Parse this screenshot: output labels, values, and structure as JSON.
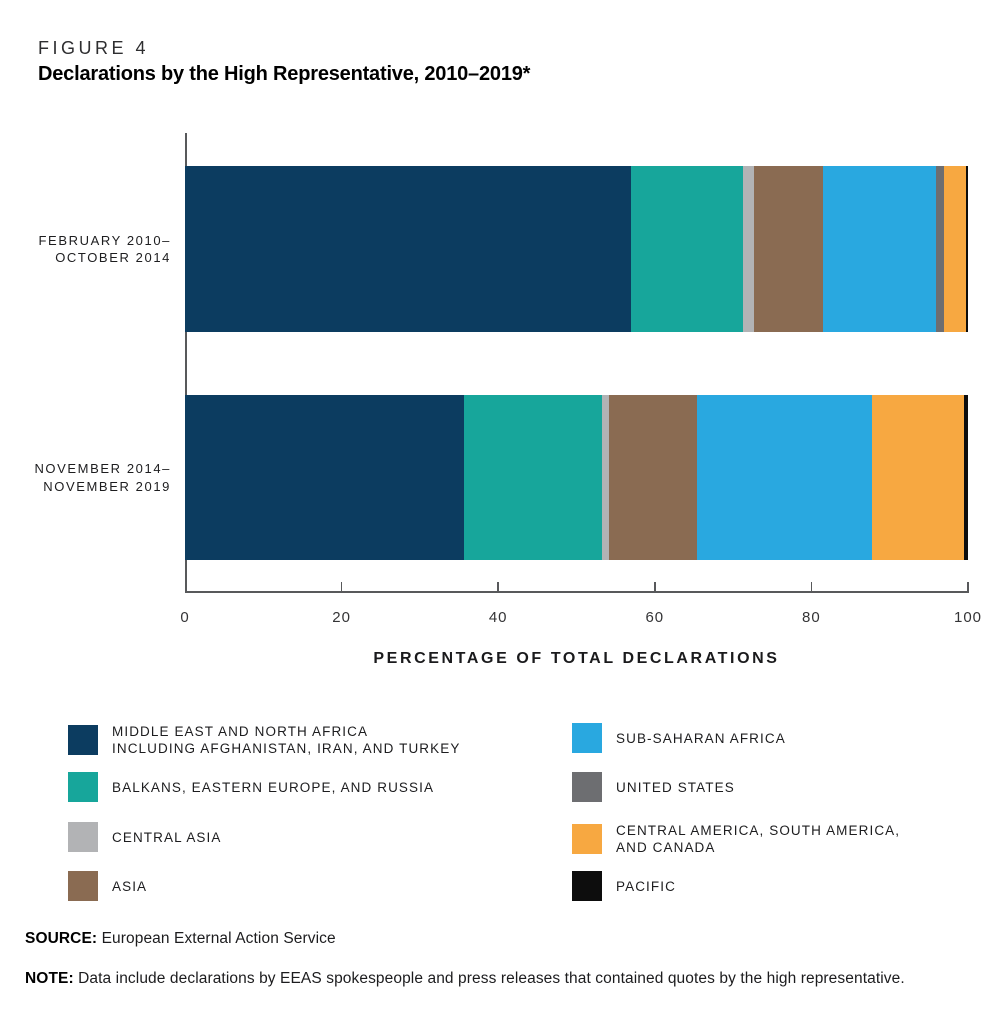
{
  "figure": {
    "label": "FIGURE 4",
    "title": "Declarations by the High Representative, 2010–2019*"
  },
  "chart_data": {
    "type": "bar",
    "orientation": "horizontal",
    "stacked": true,
    "categories": [
      "FEBRUARY 2010–\nOCTOBER 2014",
      "NOVEMBER 2014–\nNOVEMBER 2019"
    ],
    "series": [
      {
        "name": "MIDDLE EAST AND NORTH AFRICA INCLUDING AFGHANISTAN, IRAN, AND TURKEY",
        "color": "#0c3c60",
        "values": [
          56.9,
          35.6
        ]
      },
      {
        "name": "BALKANS, EASTERN EUROPE, AND RUSSIA",
        "color": "#17a69b",
        "values": [
          14.4,
          17.7
        ]
      },
      {
        "name": "CENTRAL ASIA",
        "color": "#b2b3b5",
        "values": [
          1.4,
          0.8
        ]
      },
      {
        "name": "ASIA",
        "color": "#8a6b52",
        "values": [
          8.8,
          11.3
        ]
      },
      {
        "name": "SUB-SAHARAN AFRICA",
        "color": "#29a8e0",
        "values": [
          14.4,
          22.3
        ]
      },
      {
        "name": "UNITED STATES",
        "color": "#6d6e71",
        "values": [
          1.0,
          0
        ]
      },
      {
        "name": "CENTRAL AMERICA, SOUTH AMERICA, AND CANADA",
        "color": "#f7a841",
        "values": [
          2.8,
          11.8
        ]
      },
      {
        "name": "PACIFIC",
        "color": "#0d0d0d",
        "values": [
          0.3,
          0.5
        ]
      }
    ],
    "xlabel": "PERCENTAGE OF TOTAL DECLARATIONS",
    "xticks": [
      0,
      20,
      40,
      60,
      80,
      100
    ],
    "xlim": [
      0,
      100
    ],
    "grid": false,
    "legend_position": "bottom-two-columns"
  },
  "legend": {
    "items": [
      {
        "label": "MIDDLE EAST AND NORTH AFRICA\nINCLUDING AFGHANISTAN, IRAN, AND TURKEY",
        "color": "#0c3c60"
      },
      {
        "label": "BALKANS, EASTERN EUROPE, AND RUSSIA",
        "color": "#17a69b"
      },
      {
        "label": "CENTRAL ASIA",
        "color": "#b2b3b5"
      },
      {
        "label": "ASIA",
        "color": "#8a6b52"
      },
      {
        "label": "SUB-SAHARAN AFRICA",
        "color": "#29a8e0"
      },
      {
        "label": "UNITED STATES",
        "color": "#6d6e71"
      },
      {
        "label": "CENTRAL AMERICA, SOUTH AMERICA,\nAND CANADA",
        "color": "#f7a841"
      },
      {
        "label": "PACIFIC",
        "color": "#0d0d0d"
      }
    ]
  },
  "source": {
    "label": "SOURCE:",
    "text": " European External Action Service"
  },
  "note": {
    "label": "NOTE:",
    "text": " Data include declarations by EEAS spokespeople and press releases that contained quotes by the high representative."
  },
  "colors": {
    "axis": "#58595b",
    "background": "#ffffff",
    "text": "#1d1d1f"
  }
}
